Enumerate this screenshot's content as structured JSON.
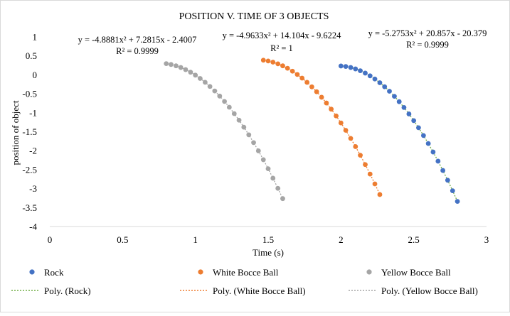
{
  "chart_data": {
    "type": "scatter",
    "title": "POSITION V. TIME OF 3 OBJECTS",
    "xlabel": "Time (s)",
    "ylabel": "position of object",
    "xlim": [
      0,
      3
    ],
    "ylim": [
      -4,
      1
    ],
    "xticks": [
      "0",
      "0.5",
      "1",
      "1.5",
      "2",
      "2.5",
      "3"
    ],
    "yticks": [
      "1",
      "0.5",
      "0",
      "-0.5",
      "-1",
      "-1.5",
      "-2",
      "-2.5",
      "-3",
      "-3.5",
      "-4"
    ],
    "xtick_values": [
      0,
      0.5,
      1,
      1.5,
      2,
      2.5,
      3
    ],
    "ytick_values": [
      1,
      0.5,
      0,
      -0.5,
      -1,
      -1.5,
      -2,
      -2.5,
      -3,
      -3.5,
      -4
    ],
    "grid": false,
    "legend_position": "bottom",
    "series": [
      {
        "name": "Rock",
        "color": "#4472C4",
        "trend_name": "Poly. (Rock)",
        "trend_color": "#70AD47",
        "equation": "y = -5.2753x² + 20.857x - 20.379",
        "r2": "R² = 0.9999",
        "coef": [
          -5.2753,
          20.857,
          -20.379
        ],
        "x": [
          2.0,
          2.033,
          2.067,
          2.1,
          2.133,
          2.167,
          2.2,
          2.233,
          2.267,
          2.3,
          2.333,
          2.367,
          2.4,
          2.433,
          2.467,
          2.5,
          2.533,
          2.567,
          2.6,
          2.633,
          2.667,
          2.7,
          2.733,
          2.767,
          2.8
        ]
      },
      {
        "name": "White Bocce Ball",
        "color": "#ED7D31",
        "trend_name": "Poly. (White Bocce Ball)",
        "trend_color": "#ED7D31",
        "equation": "y = -4.9633x² + 14.104x - 9.6224",
        "r2": "R² = 1",
        "coef": [
          -4.9633,
          14.104,
          -9.6224
        ],
        "x": [
          1.467,
          1.5,
          1.533,
          1.567,
          1.6,
          1.633,
          1.667,
          1.7,
          1.733,
          1.767,
          1.8,
          1.833,
          1.867,
          1.9,
          1.933,
          1.967,
          2.0,
          2.033,
          2.067,
          2.1,
          2.133,
          2.167,
          2.2,
          2.233,
          2.267
        ]
      },
      {
        "name": "Yellow Bocce Ball",
        "color": "#A5A5A5",
        "trend_name": "Poly. (Yellow Bocce Ball)",
        "trend_color": "#A5A5A5",
        "equation": "y = -4.8881x² + 7.2815x - 2.4007",
        "r2": "R² = 0.9999",
        "coef": [
          -4.8881,
          7.2815,
          -2.4007
        ],
        "x": [
          0.8,
          0.833,
          0.867,
          0.9,
          0.933,
          0.967,
          1.0,
          1.033,
          1.067,
          1.1,
          1.133,
          1.167,
          1.2,
          1.233,
          1.267,
          1.3,
          1.333,
          1.367,
          1.4,
          1.433,
          1.467,
          1.5,
          1.533,
          1.567,
          1.6
        ]
      }
    ]
  }
}
